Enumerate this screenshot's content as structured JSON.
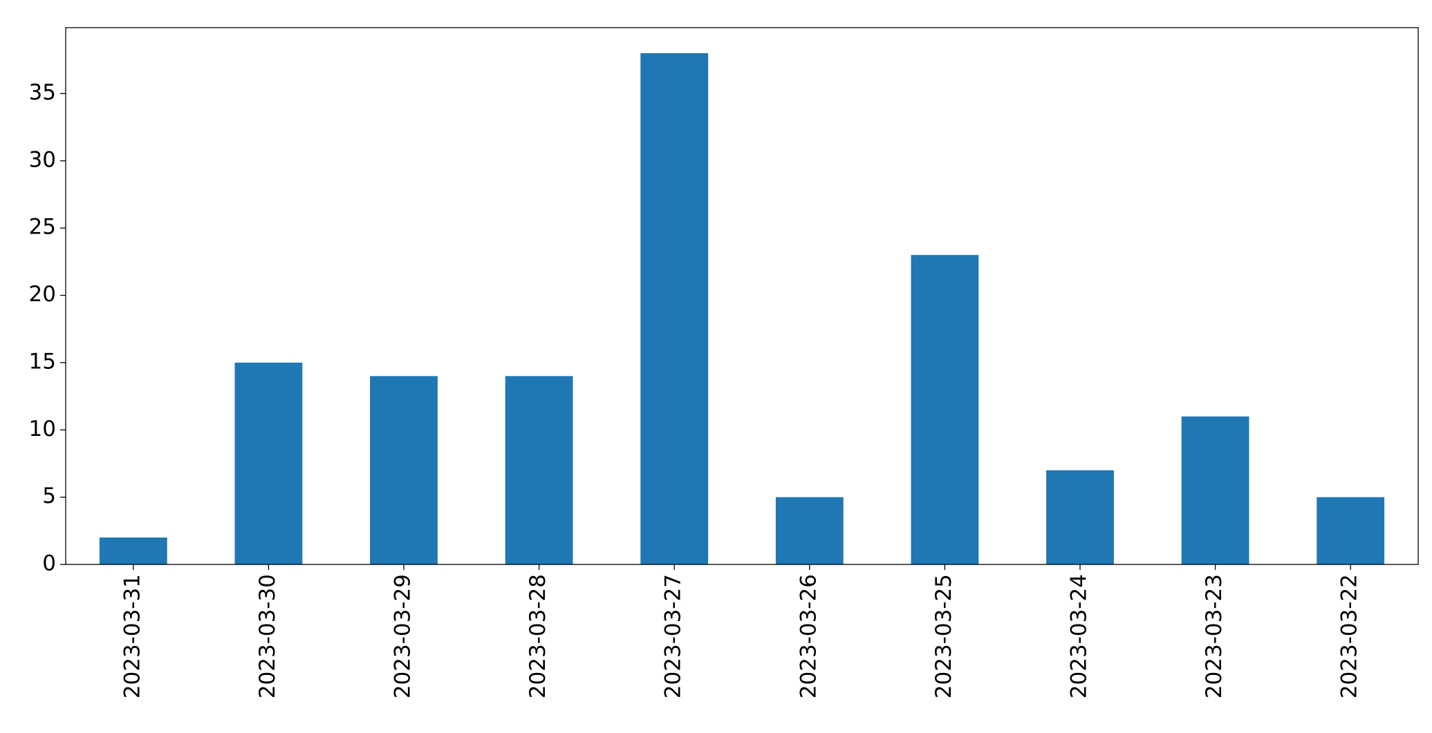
{
  "chart_data": {
    "type": "bar",
    "categories": [
      "2023-03-31",
      "2023-03-30",
      "2023-03-29",
      "2023-03-28",
      "2023-03-27",
      "2023-03-26",
      "2023-03-25",
      "2023-03-24",
      "2023-03-23",
      "2023-03-22"
    ],
    "values": [
      2,
      15,
      14,
      14,
      38,
      5,
      23,
      7,
      11,
      5
    ],
    "color": "#1f77b4",
    "ylim": [
      0,
      39.9
    ],
    "yticks": [
      0,
      5,
      10,
      15,
      20,
      25,
      30,
      35
    ],
    "grid": false
  }
}
